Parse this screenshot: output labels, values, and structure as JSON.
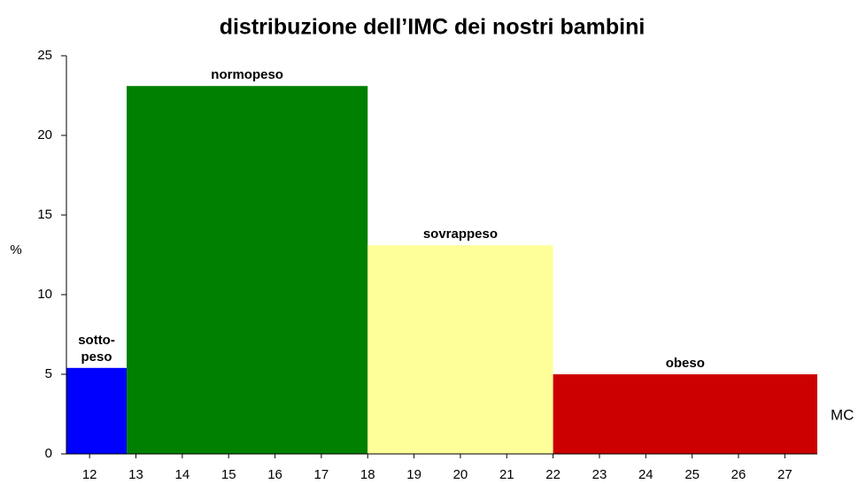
{
  "chart_data": {
    "type": "histogram",
    "title": "distribuzione dell’IMC dei nostri bambini",
    "ylabel": "%",
    "xlabel": "MC",
    "bins": [
      11.5,
      12.8,
      18,
      22,
      27.7
    ],
    "values": [
      5.4,
      23.1,
      13.1,
      5.0
    ],
    "labels": [
      [
        "sotto-",
        "peso"
      ],
      [
        "normopeso"
      ],
      [
        "sovrappeso"
      ],
      [
        "obeso"
      ]
    ],
    "colors": [
      "#0000ff",
      "#008000",
      "#ffff99",
      "#cc0000"
    ],
    "xlim": [
      11.5,
      27.7
    ],
    "xticks": [
      12,
      13,
      14,
      15,
      16,
      17,
      18,
      19,
      20,
      21,
      22,
      23,
      24,
      25,
      26,
      27
    ],
    "ylim": [
      0,
      25
    ],
    "yticks": [
      0,
      5,
      10,
      15,
      20,
      25
    ]
  }
}
